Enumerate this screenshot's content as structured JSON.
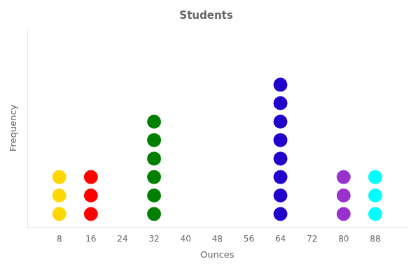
{
  "chart_data": {
    "type": "dot",
    "title": "Students",
    "xlabel": "Ounces",
    "ylabel": "Frequency",
    "x": [
      8,
      16,
      32,
      64,
      80,
      88
    ],
    "values": [
      3,
      3,
      6,
      8,
      3,
      3
    ],
    "colors": [
      "#FFD700",
      "#FF0000",
      "#008000",
      "#2200CC",
      "#9932CC",
      "#00FFFF"
    ],
    "xlim": [
      0,
      96
    ],
    "xticks": [
      8,
      16,
      24,
      32,
      40,
      48,
      56,
      64,
      72,
      80,
      88
    ],
    "ylim": [
      0.3,
      11
    ],
    "grid": false,
    "tick_labels": "x"
  }
}
